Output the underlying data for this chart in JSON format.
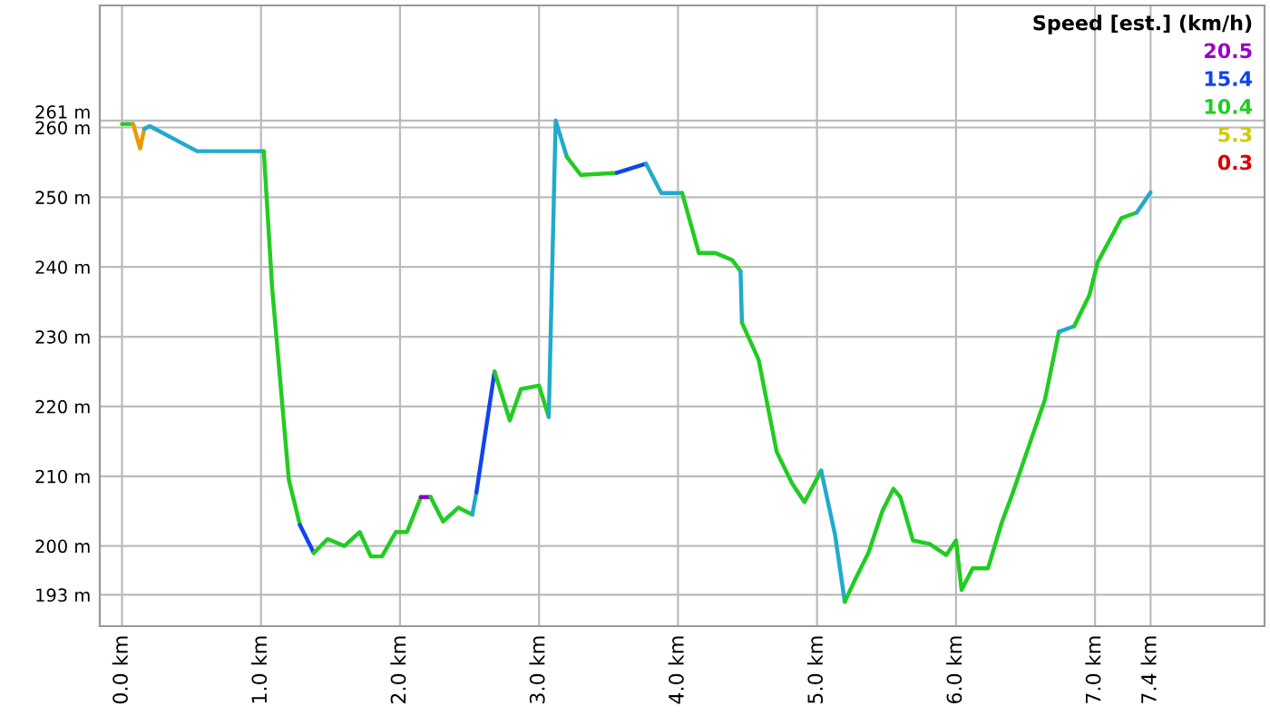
{
  "chart_data": {
    "type": "line",
    "series": [
      {
        "color": "#22cc22",
        "x": [
          0,
          0.08
        ],
        "values": [
          260.5,
          260.5
        ]
      },
      {
        "color": "#ee9900",
        "x": [
          0.08,
          0.13,
          0.16
        ],
        "values": [
          260.5,
          257,
          259.8
        ]
      },
      {
        "color": "#22aacc",
        "x": [
          0.16,
          0.2,
          0.54,
          1.02
        ],
        "values": [
          259.8,
          260.2,
          256.6,
          256.6
        ]
      },
      {
        "color": "#22cc22",
        "x": [
          1.02,
          1.08,
          1.2,
          1.28
        ],
        "values": [
          256.6,
          237,
          209.5,
          203
        ]
      },
      {
        "color": "#1144ee",
        "x": [
          1.28,
          1.38
        ],
        "values": [
          203,
          199
        ]
      },
      {
        "color": "#22cc22",
        "x": [
          1.38,
          1.48,
          1.6,
          1.71,
          1.79,
          1.87,
          1.97,
          2.05,
          2.15
        ],
        "values": [
          199,
          201,
          200,
          202,
          198.5,
          198.5,
          202,
          202,
          207
        ]
      },
      {
        "color": "#8800cc",
        "x": [
          2.15,
          2.22
        ],
        "values": [
          207,
          207
        ]
      },
      {
        "color": "#22cc22",
        "x": [
          2.22,
          2.31,
          2.42,
          2.52
        ],
        "values": [
          207,
          203.5,
          205.5,
          204.5
        ]
      },
      {
        "color": "#22aacc",
        "x": [
          2.52,
          2.55
        ],
        "values": [
          204.5,
          207.7
        ]
      },
      {
        "color": "#1144ee",
        "x": [
          2.55,
          2.68
        ],
        "values": [
          207.7,
          225
        ]
      },
      {
        "color": "#22cc22",
        "x": [
          2.68,
          2.79,
          2.87,
          3.0,
          3.07
        ],
        "values": [
          225,
          218,
          222.5,
          223,
          218.5
        ]
      },
      {
        "color": "#22aacc",
        "x": [
          3.07,
          3.12,
          3.2
        ],
        "values": [
          218.5,
          261,
          255.8
        ]
      },
      {
        "color": "#22cc22",
        "x": [
          3.2,
          3.3,
          3.56
        ],
        "values": [
          255.8,
          253.2,
          253.5
        ]
      },
      {
        "color": "#1144ee",
        "x": [
          3.56,
          3.77
        ],
        "values": [
          253.5,
          254.8
        ]
      },
      {
        "color": "#22aacc",
        "x": [
          3.77,
          3.88,
          4.03
        ],
        "values": [
          254.8,
          250.6,
          250.6
        ]
      },
      {
        "color": "#22cc22",
        "x": [
          4.03,
          4.15,
          4.27,
          4.39,
          4.45
        ],
        "values": [
          250.6,
          242,
          242,
          241,
          239.4
        ]
      },
      {
        "color": "#22aacc",
        "x": [
          4.45,
          4.46
        ],
        "values": [
          239.4,
          232
        ]
      },
      {
        "color": "#22cc22",
        "x": [
          4.46,
          4.58,
          4.71,
          4.82,
          4.91,
          5.03
        ],
        "values": [
          232,
          226.7,
          213.5,
          209,
          206.3,
          210.8
        ]
      },
      {
        "color": "#22aacc",
        "x": [
          5.03,
          5.13,
          5.2
        ],
        "values": [
          210.8,
          201.6,
          192
        ]
      },
      {
        "color": "#22cc22",
        "x": [
          5.2,
          5.27,
          5.37,
          5.47,
          5.55,
          5.6,
          5.69,
          5.81,
          5.93,
          6.0,
          6.04,
          6.12,
          6.23,
          6.33,
          6.41,
          6.51,
          6.64,
          6.74
        ],
        "values": [
          192,
          195,
          199,
          205,
          208.2,
          207,
          200.8,
          200.3,
          198.7,
          200.8,
          193.7,
          196.8,
          196.8,
          203.4,
          207.7,
          213.5,
          221,
          230.7
        ]
      },
      {
        "color": "#22aacc",
        "x": [
          6.74,
          6.85
        ],
        "values": [
          230.7,
          231.5
        ]
      },
      {
        "color": "#22cc22",
        "x": [
          6.85,
          6.96,
          7.02,
          7.19,
          7.3
        ],
        "values": [
          231.5,
          236,
          240.7,
          247,
          247.8
        ]
      },
      {
        "color": "#22aacc",
        "x": [
          7.3,
          7.4
        ],
        "values": [
          247.8,
          250.7
        ]
      }
    ],
    "annotations": [
      "Speed [est.] (km/h)",
      "20.5",
      "15.4",
      "10.4",
      "5.3",
      "0.3"
    ],
    "xlim": [
      -0.16,
      8.22
    ],
    "ylim": [
      188.5,
      277.5
    ],
    "xticks": [
      {
        "value": 0,
        "label": "0.0 km"
      },
      {
        "value": 1,
        "label": "1.0 km"
      },
      {
        "value": 2,
        "label": "2.0 km"
      },
      {
        "value": 3,
        "label": "3.0 km"
      },
      {
        "value": 4,
        "label": "4.0 km"
      },
      {
        "value": 5,
        "label": "5.0 km"
      },
      {
        "value": 6,
        "label": "6.0 km"
      },
      {
        "value": 7,
        "label": "7.0 km"
      },
      {
        "value": 7.4,
        "label": "7.4 km"
      }
    ],
    "yticks": [
      {
        "value": 193,
        "label": "193 m"
      },
      {
        "value": 200,
        "label": "200 m"
      },
      {
        "value": 210,
        "label": "210 m"
      },
      {
        "value": 220,
        "label": "220 m"
      },
      {
        "value": 230,
        "label": "230 m"
      },
      {
        "value": 240,
        "label": "240 m"
      },
      {
        "value": 250,
        "label": "250 m"
      },
      {
        "value": 260,
        "label": "260 m"
      },
      {
        "value": 261,
        "label": "261 m"
      }
    ],
    "grid": true
  }
}
